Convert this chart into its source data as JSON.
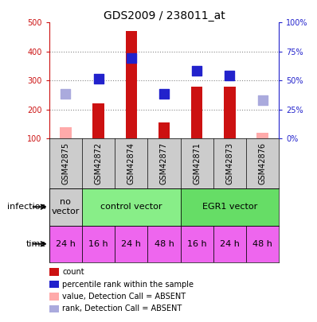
{
  "title": "GDS2009 / 238011_at",
  "samples": [
    "GSM42875",
    "GSM42872",
    "GSM42874",
    "GSM42877",
    "GSM42871",
    "GSM42873",
    "GSM42876"
  ],
  "count_values": [
    null,
    220,
    470,
    155,
    280,
    280,
    null
  ],
  "count_absent": [
    140,
    null,
    null,
    null,
    null,
    null,
    120
  ],
  "percentile_values": [
    null,
    307,
    377,
    255,
    333,
    318,
    null
  ],
  "percentile_absent": [
    255,
    null,
    null,
    null,
    null,
    null,
    232
  ],
  "ylim_left": [
    100,
    500
  ],
  "ylim_right": [
    0,
    100
  ],
  "yticks_left": [
    100,
    200,
    300,
    400,
    500
  ],
  "ytick_labels_left": [
    "100",
    "200",
    "300",
    "400",
    "500"
  ],
  "ytick_labels_right": [
    "0%",
    "25%",
    "50%",
    "75%",
    "100%"
  ],
  "yticks_right": [
    0,
    25,
    50,
    75,
    100
  ],
  "infection_groups": [
    {
      "label": "no\nvector",
      "span": [
        0,
        1
      ],
      "color": "#cccccc"
    },
    {
      "label": "control vector",
      "span": [
        1,
        4
      ],
      "color": "#88ee88"
    },
    {
      "label": "EGR1 vector",
      "span": [
        4,
        7
      ],
      "color": "#66dd66"
    }
  ],
  "time_labels": [
    "24 h",
    "16 h",
    "24 h",
    "48 h",
    "16 h",
    "24 h",
    "48 h"
  ],
  "time_color": "#ee66ee",
  "bar_color": "#cc1111",
  "bar_absent_color": "#ffaaaa",
  "square_color": "#2222cc",
  "square_absent_color": "#aaaadd",
  "legend_items": [
    {
      "color": "#cc1111",
      "label": "count"
    },
    {
      "color": "#2222cc",
      "label": "percentile rank within the sample"
    },
    {
      "color": "#ffaaaa",
      "label": "value, Detection Call = ABSENT"
    },
    {
      "color": "#aaaadd",
      "label": "rank, Detection Call = ABSENT"
    }
  ],
  "grid_color": "#888888",
  "bg_color": "#ffffff",
  "left_axis_color": "#cc1111",
  "right_axis_color": "#2222cc"
}
